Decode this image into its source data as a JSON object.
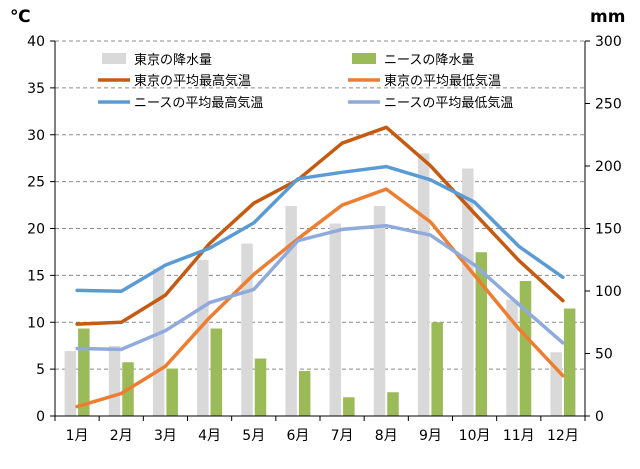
{
  "chart_data": {
    "type": "bar+line",
    "title": "",
    "categories": [
      "1月",
      "2月",
      "3月",
      "4月",
      "5月",
      "6月",
      "7月",
      "8月",
      "9月",
      "10月",
      "11月",
      "12月"
    ],
    "y_left": {
      "unit": "℃",
      "min": 0,
      "max": 40,
      "step": 5,
      "ticks": [
        "0",
        "5",
        "10",
        "15",
        "20",
        "25",
        "30",
        "35",
        "40"
      ]
    },
    "y_right": {
      "unit": "mm",
      "min": 0,
      "max": 300,
      "step": 50,
      "ticks": [
        "0",
        "50",
        "100",
        "150",
        "200",
        "250",
        "300"
      ]
    },
    "grid": "horizontal-dashed",
    "legend_position": "top-inside",
    "bar_series": [
      {
        "name": "東京の降水量",
        "axis": "right",
        "color": "#d9d9d9",
        "values": [
          52,
          56,
          118,
          125,
          138,
          168,
          154,
          168,
          210,
          198,
          93,
          51
        ]
      },
      {
        "name": "ニースの降水量",
        "axis": "right",
        "color": "#9bbb59",
        "values": [
          70,
          43,
          38,
          70,
          46,
          36,
          15,
          19,
          75,
          131,
          108,
          86
        ]
      }
    ],
    "line_series": [
      {
        "name": "東京の平均最高気温",
        "axis": "left",
        "color": "#c55a11",
        "values": [
          9.8,
          10.0,
          12.9,
          18.4,
          22.7,
          25.2,
          29.1,
          30.8,
          26.7,
          21.6,
          16.6,
          12.3
        ]
      },
      {
        "name": "東京の平均最低気温",
        "axis": "left",
        "color": "#ed7d31",
        "values": [
          1.0,
          2.4,
          5.3,
          10.5,
          15.1,
          18.9,
          22.5,
          24.2,
          20.7,
          15.0,
          9.3,
          4.3
        ]
      },
      {
        "name": "ニースの平均最高気温",
        "axis": "left",
        "color": "#5b9bd5",
        "values": [
          13.4,
          13.3,
          16.1,
          17.9,
          20.6,
          25.3,
          26.0,
          26.6,
          25.2,
          22.8,
          18.1,
          14.8
        ]
      },
      {
        "name": "ニースの平均最低気温",
        "axis": "left",
        "color": "#8faadc",
        "values": [
          7.2,
          7.1,
          9.1,
          12.1,
          13.5,
          18.7,
          19.9,
          20.3,
          19.3,
          16.1,
          11.9,
          7.8
        ]
      }
    ]
  }
}
